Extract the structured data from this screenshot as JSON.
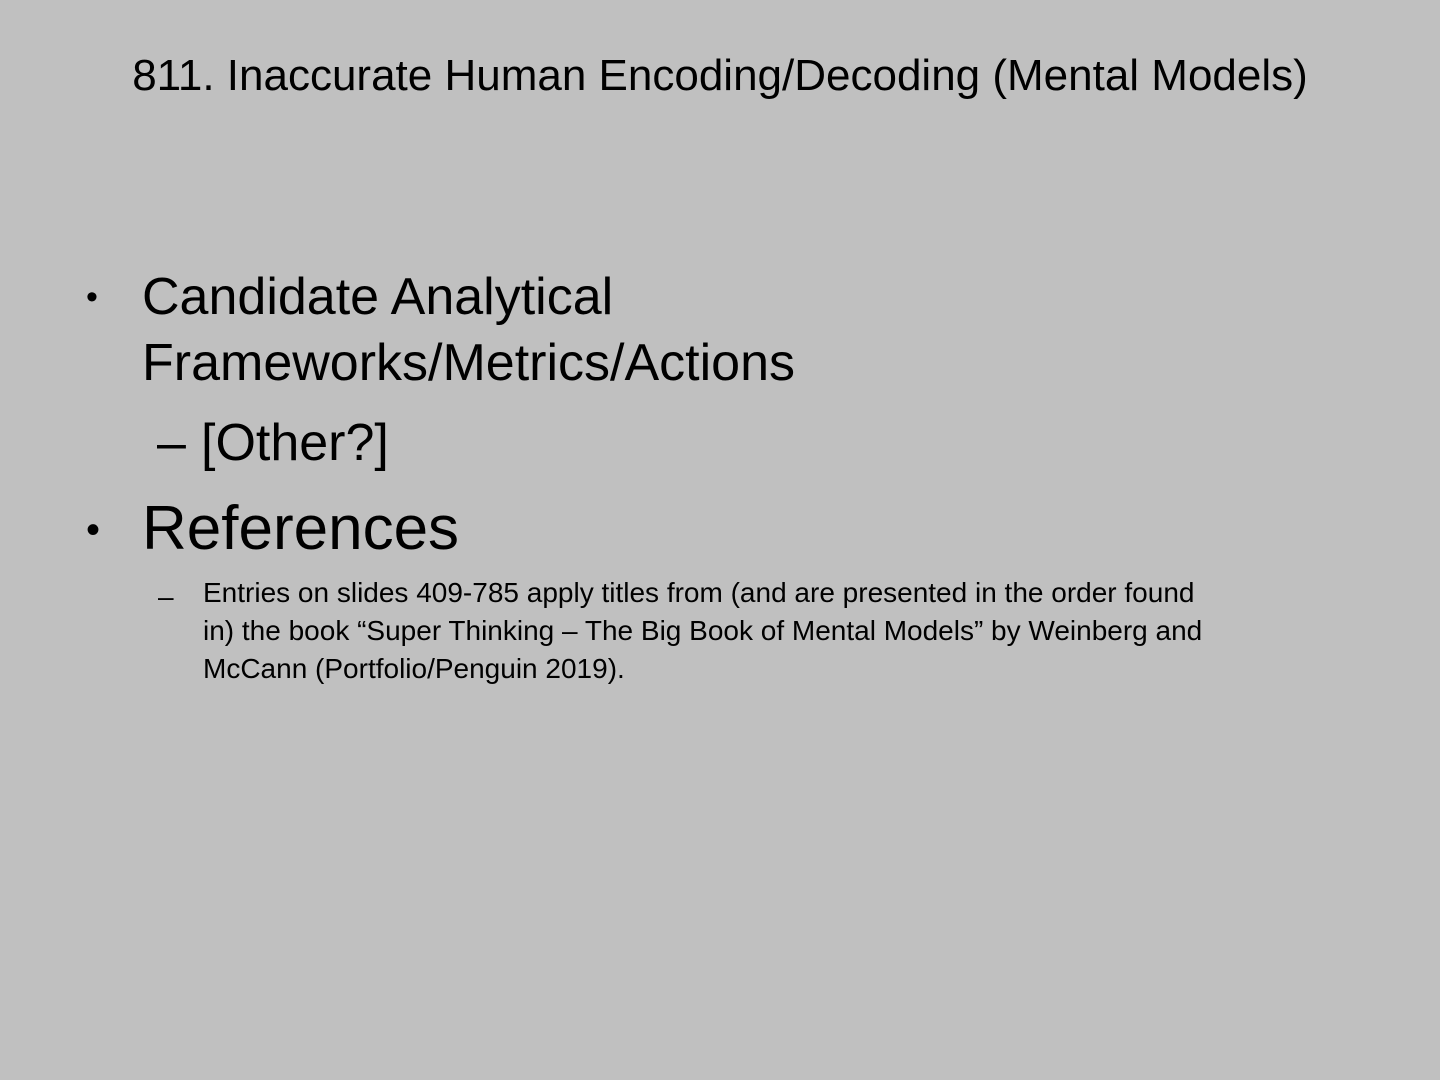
{
  "slide": {
    "title": "811. Inaccurate Human Encoding/Decoding (Mental Models)",
    "bullet_symbol": "•",
    "items": [
      {
        "lines": [
          "Candidate Analytical",
          "Frameworks/Metrics/Actions"
        ],
        "subitems": [
          {
            "dash": "–",
            "text": "[Other?]"
          }
        ]
      },
      {
        "lines": [
          "References"
        ],
        "subitems": [
          {
            "dash": "–",
            "lines": [
              "Entries on slides 409-785 apply titles from (and are presented in the order found",
              "in) the book “Super Thinking – The Big Book of Mental Models” by Weinberg and",
              "McCann (Portfolio/Penguin 2019)."
            ]
          }
        ]
      }
    ]
  }
}
